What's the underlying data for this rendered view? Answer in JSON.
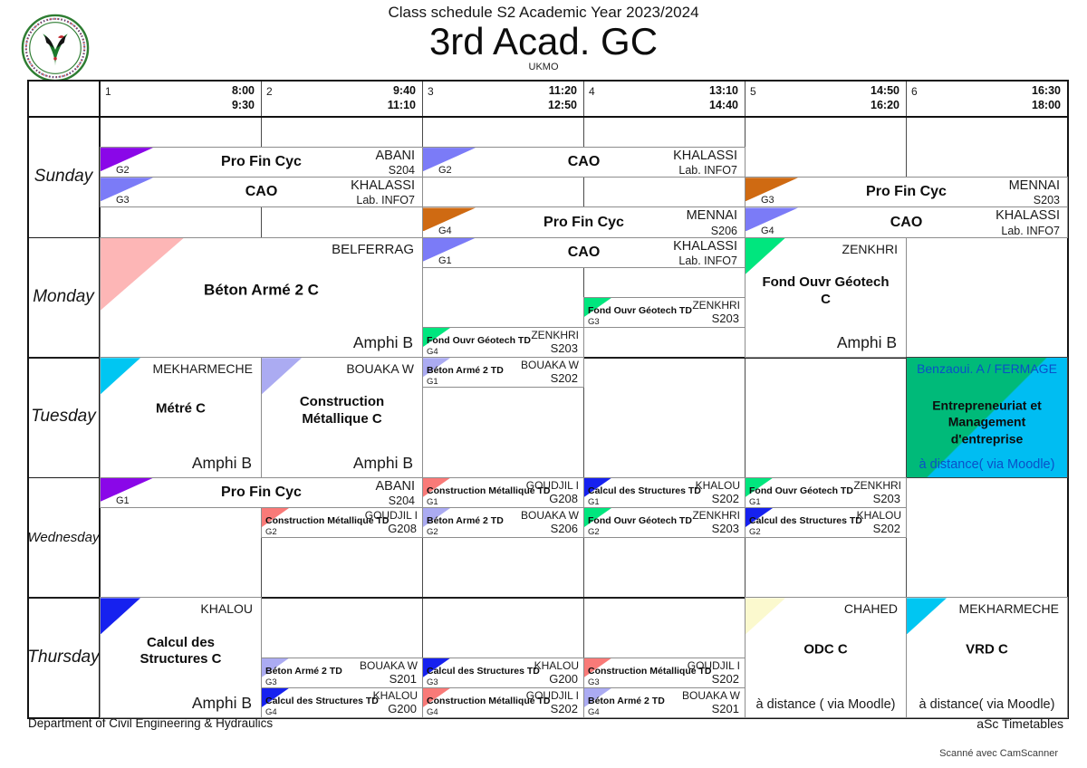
{
  "header": {
    "subtitle": "Class schedule S2 Academic Year 2023/2024",
    "title": "3rd Acad. GC",
    "org": "UKMO"
  },
  "logo_name": "university-kasdi-merbah-ouargla-seal",
  "periods": [
    {
      "num": "1",
      "start": "8:00",
      "end": "9:30"
    },
    {
      "num": "2",
      "start": "9:40",
      "end": "11:10"
    },
    {
      "num": "3",
      "start": "11:20",
      "end": "12:50"
    },
    {
      "num": "4",
      "start": "13:10",
      "end": "14:40"
    },
    {
      "num": "5",
      "start": "14:50",
      "end": "16:20"
    },
    {
      "num": "6",
      "start": "16:30",
      "end": "18:00"
    }
  ],
  "days": [
    "Sunday",
    "Monday",
    "Tuesday",
    "Wednesday",
    "Thursday"
  ],
  "colors": {
    "purple": "#8A07E8",
    "periwinkle": "#7B7BF7",
    "orange": "#CF6A12",
    "pink": "#FDB6B6",
    "green": "#00E67E",
    "cyan": "#00C6F2",
    "lavender": "#ABABF2",
    "salmon": "#F97A78",
    "blue": "#1621EF",
    "lightyellow": "#FBF9CE",
    "split_green": "#00BA79",
    "split_cyan": "#00BDF2",
    "split_text": "#0a50c8"
  },
  "entries": [
    {
      "day": 0,
      "col": 1,
      "span": 2,
      "sub": 1,
      "rows": 1,
      "group": "G2",
      "course": "Pro Fin Cyc",
      "teacher": "ABANI",
      "room": "S204",
      "color": "purple",
      "kind": "band"
    },
    {
      "day": 0,
      "col": 3,
      "span": 2,
      "sub": 1,
      "rows": 1,
      "group": "G2",
      "course": "CAO",
      "teacher": "KHALASSI",
      "room": "Lab. INFO7",
      "color": "periwinkle",
      "kind": "band"
    },
    {
      "day": 0,
      "col": 1,
      "span": 2,
      "sub": 2,
      "rows": 1,
      "group": "G3",
      "course": "CAO",
      "teacher": "KHALASSI",
      "room": "Lab. INFO7",
      "color": "periwinkle",
      "kind": "band"
    },
    {
      "day": 0,
      "col": 5,
      "span": 2,
      "sub": 2,
      "rows": 1,
      "group": "G3",
      "course": "Pro Fin Cyc",
      "teacher": "MENNAI",
      "room": "S203",
      "color": "orange",
      "kind": "band"
    },
    {
      "day": 0,
      "col": 3,
      "span": 2,
      "sub": 3,
      "rows": 1,
      "group": "G4",
      "course": "Pro Fin Cyc",
      "teacher": "MENNAI",
      "room": "S206",
      "color": "orange",
      "kind": "band"
    },
    {
      "day": 0,
      "col": 5,
      "span": 2,
      "sub": 3,
      "rows": 1,
      "group": "G4",
      "course": "CAO",
      "teacher": "KHALASSI",
      "room": "Lab. INFO7",
      "color": "periwinkle",
      "kind": "band"
    },
    {
      "day": 1,
      "col": 1,
      "span": 2,
      "sub": 0,
      "rows": 4,
      "group": "",
      "course": "Béton Armé 2 C",
      "teacher": "BELFERRAG",
      "room": "Amphi B",
      "color": "pink",
      "kind": "big"
    },
    {
      "day": 1,
      "col": 3,
      "span": 2,
      "sub": 0,
      "rows": 1,
      "group": "G1",
      "course": "CAO",
      "teacher": "KHALASSI",
      "room": "Lab. INFO7",
      "color": "periwinkle",
      "kind": "band"
    },
    {
      "day": 1,
      "col": 4,
      "span": 1,
      "sub": 2,
      "rows": 1,
      "group": "G3",
      "course": "Fond Ouvr Géotech TD",
      "teacher": "ZENKHRI",
      "room": "S203",
      "color": "green",
      "kind": "td"
    },
    {
      "day": 1,
      "col": 3,
      "span": 1,
      "sub": 3,
      "rows": 1,
      "group": "G4",
      "course": "Fond Ouvr Géotech TD",
      "teacher": "ZENKHRI",
      "room": "S203",
      "color": "green",
      "kind": "td"
    },
    {
      "day": 1,
      "col": 5,
      "span": 1,
      "sub": 0,
      "rows": 4,
      "group": "",
      "course": "Fond Ouvr Géotech\nC",
      "teacher": "ZENKHRI",
      "room": "Amphi B",
      "color": "green",
      "kind": "big"
    },
    {
      "day": 2,
      "col": 1,
      "span": 1,
      "sub": 0,
      "rows": 4,
      "group": "",
      "course": "Métré C",
      "teacher": "MEKHARMECHE",
      "room": "Amphi B",
      "color": "cyan",
      "kind": "big"
    },
    {
      "day": 2,
      "col": 2,
      "span": 1,
      "sub": 0,
      "rows": 4,
      "group": "",
      "course": "Construction\nMétallique C",
      "teacher": "BOUAKA W",
      "room": "Amphi B",
      "color": "lavender",
      "kind": "big"
    },
    {
      "day": 2,
      "col": 3,
      "span": 1,
      "sub": 0,
      "rows": 1,
      "group": "G1",
      "course": "Béton Armé 2 TD",
      "teacher": "BOUAKA W",
      "room": "S202",
      "color": "lavender",
      "kind": "td"
    },
    {
      "day": 2,
      "col": 6,
      "span": 1,
      "sub": 0,
      "rows": 4,
      "group": "",
      "course": "Entrepreneuriat et\nManagement\nd'entreprise",
      "teacher": "Benzaoui. A / FERMAGE",
      "room": "à distance( via Moodle)",
      "color": "split_green",
      "kind": "split"
    },
    {
      "day": 3,
      "col": 1,
      "span": 2,
      "sub": 0,
      "rows": 1,
      "group": "G1",
      "course": "Pro Fin Cyc",
      "teacher": "ABANI",
      "room": "S204",
      "color": "purple",
      "kind": "band"
    },
    {
      "day": 3,
      "col": 3,
      "span": 1,
      "sub": 0,
      "rows": 1,
      "group": "G1",
      "course": "Construction Métallique TD",
      "teacher": "GOUDJIL I",
      "room": "G208",
      "color": "salmon",
      "kind": "td"
    },
    {
      "day": 3,
      "col": 4,
      "span": 1,
      "sub": 0,
      "rows": 1,
      "group": "G1",
      "course": "Calcul des Structures TD",
      "teacher": "KHALOU",
      "room": "S202",
      "color": "blue",
      "kind": "td"
    },
    {
      "day": 3,
      "col": 5,
      "span": 1,
      "sub": 0,
      "rows": 1,
      "group": "G1",
      "course": "Fond Ouvr Géotech TD",
      "teacher": "ZENKHRI",
      "room": "S203",
      "color": "green",
      "kind": "td"
    },
    {
      "day": 3,
      "col": 2,
      "span": 1,
      "sub": 1,
      "rows": 1,
      "group": "G2",
      "course": "Construction Métallique TD",
      "teacher": "GOUDJIL I",
      "room": "G208",
      "color": "salmon",
      "kind": "td"
    },
    {
      "day": 3,
      "col": 3,
      "span": 1,
      "sub": 1,
      "rows": 1,
      "group": "G2",
      "course": "Béton Armé 2 TD",
      "teacher": "BOUAKA W",
      "room": "S206",
      "color": "lavender",
      "kind": "td"
    },
    {
      "day": 3,
      "col": 4,
      "span": 1,
      "sub": 1,
      "rows": 1,
      "group": "G2",
      "course": "Fond Ouvr Géotech TD",
      "teacher": "ZENKHRI",
      "room": "S203",
      "color": "green",
      "kind": "td"
    },
    {
      "day": 3,
      "col": 5,
      "span": 1,
      "sub": 1,
      "rows": 1,
      "group": "G2",
      "course": "Calcul des Structures TD",
      "teacher": "KHALOU",
      "room": "S202",
      "color": "blue",
      "kind": "td"
    },
    {
      "day": 4,
      "col": 1,
      "span": 1,
      "sub": 0,
      "rows": 4,
      "group": "",
      "course": "Calcul des\nStructures C",
      "teacher": "KHALOU",
      "room": "Amphi B",
      "color": "blue",
      "kind": "big"
    },
    {
      "day": 4,
      "col": 2,
      "span": 1,
      "sub": 2,
      "rows": 1,
      "group": "G3",
      "course": "Béton Armé 2 TD",
      "teacher": "BOUAKA W",
      "room": "S201",
      "color": "lavender",
      "kind": "td"
    },
    {
      "day": 4,
      "col": 3,
      "span": 1,
      "sub": 2,
      "rows": 1,
      "group": "G3",
      "course": "Calcul des Structures TD",
      "teacher": "KHALOU",
      "room": "G200",
      "color": "blue",
      "kind": "td"
    },
    {
      "day": 4,
      "col": 4,
      "span": 1,
      "sub": 2,
      "rows": 1,
      "group": "G3",
      "course": "Construction Métallique TD",
      "teacher": "GOUDJIL I",
      "room": "S202",
      "color": "salmon",
      "kind": "td"
    },
    {
      "day": 4,
      "col": 2,
      "span": 1,
      "sub": 3,
      "rows": 1,
      "group": "G4",
      "course": "Calcul des Structures TD",
      "teacher": "KHALOU",
      "room": "G200",
      "color": "blue",
      "kind": "td"
    },
    {
      "day": 4,
      "col": 3,
      "span": 1,
      "sub": 3,
      "rows": 1,
      "group": "G4",
      "course": "Construction Métallique TD",
      "teacher": "GOUDJIL I",
      "room": "S202",
      "color": "salmon",
      "kind": "td"
    },
    {
      "day": 4,
      "col": 4,
      "span": 1,
      "sub": 3,
      "rows": 1,
      "group": "G4",
      "course": "Béton Armé 2 TD",
      "teacher": "BOUAKA W",
      "room": "S201",
      "color": "lavender",
      "kind": "td"
    },
    {
      "day": 4,
      "col": 5,
      "span": 1,
      "sub": 0,
      "rows": 4,
      "group": "",
      "course": "ODC C",
      "teacher": "CHAHED",
      "room": "à distance ( via Moodle)",
      "color": "lightyellow",
      "kind": "big"
    },
    {
      "day": 4,
      "col": 6,
      "span": 1,
      "sub": 0,
      "rows": 4,
      "group": "",
      "course": "VRD C",
      "teacher": "MEKHARMECHE",
      "room": "à distance( via Moodle)",
      "color": "cyan",
      "kind": "big"
    }
  ],
  "footer": {
    "left": "Department of Civil Engineering & Hydraulics",
    "right": "aSc Timetables",
    "scan": "Scanné avec CamScanner"
  }
}
